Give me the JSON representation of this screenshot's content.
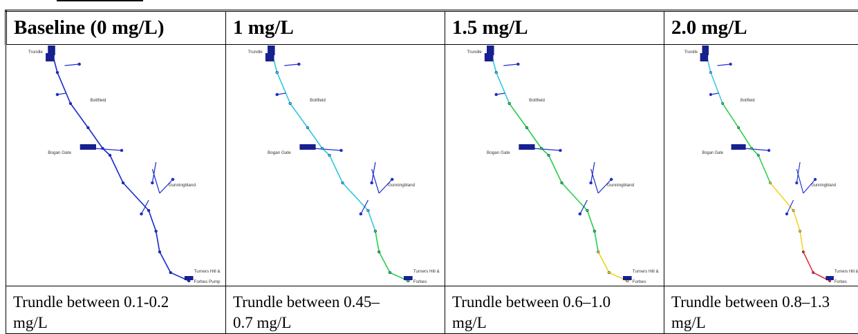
{
  "columns": [
    {
      "header": "Baseline (0 mg/L)",
      "caption": "Trundle between 0.1-0.2 mg/L",
      "map": {
        "place_labels": [
          "Trundle",
          "Bottfield",
          "Bogan Gate",
          "Gunningbland",
          "Turners Hill &",
          "Forbes Pump"
        ],
        "segment_colors": [
          "#1f2fcc",
          "#1f2fcc",
          "#1f2fcc",
          "#1f2fcc",
          "#1f2fcc",
          "#1f2fcc",
          "#1f2fcc"
        ]
      }
    },
    {
      "header": "1 mg/L",
      "caption": "Trundle between 0.45–0.7 mg/L",
      "map": {
        "place_labels": [
          "Trundle",
          "Bottfield",
          "Bogan Gate",
          "Gunningbland",
          "Turners Hill &",
          "Forbes"
        ],
        "segment_colors": [
          "#38c8e0",
          "#38c8e0",
          "#38c8e0",
          "#38c8e0",
          "#2fcf4f",
          "#2fcf4f",
          "#2fcf4f"
        ]
      }
    },
    {
      "header": "1.5 mg/L",
      "caption": "Trundle between 0.6–1.0 mg/L",
      "map": {
        "place_labels": [
          "Trundle",
          "Bottfield",
          "Bogan Gate",
          "Gunningbland",
          "Turners Hill &",
          "Forbes"
        ],
        "segment_colors": [
          "#38c8e0",
          "#2fcf4f",
          "#2fcf4f",
          "#2fcf4f",
          "#2fcf4f",
          "#f2d21e",
          "#f2d21e"
        ]
      }
    },
    {
      "header": "2.0 mg/L",
      "caption": "Trundle between 0.8–1.3 mg/L",
      "map": {
        "place_labels": [
          "Trundle",
          "Bottfield",
          "Bogan Gate",
          "Gunningbland",
          "Turners Hill &",
          "Forbes"
        ],
        "segment_colors": [
          "#38c8e0",
          "#2fcf4f",
          "#2fcf4f",
          "#f2d21e",
          "#f2d21e",
          "#e03030",
          "#e03030"
        ]
      }
    }
  ]
}
